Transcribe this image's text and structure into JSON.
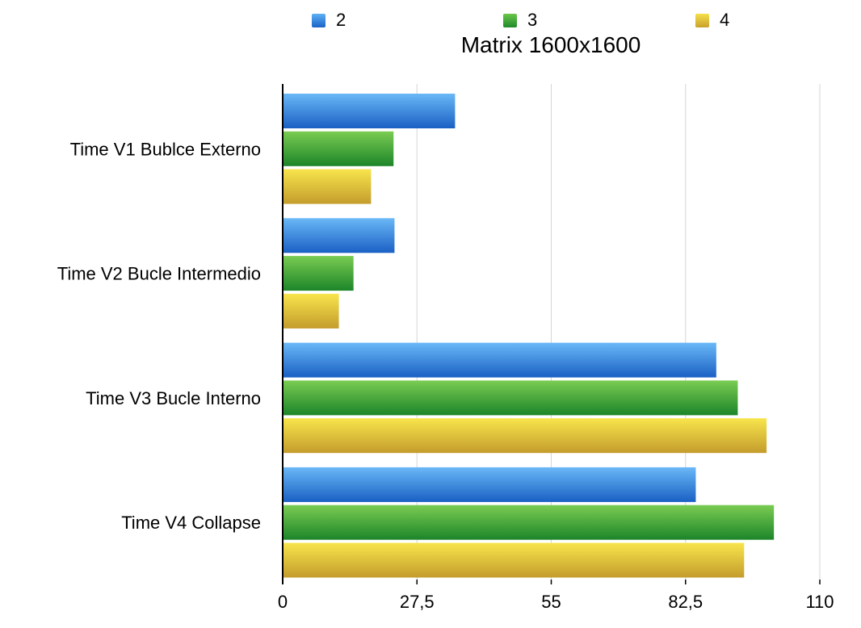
{
  "chart_data": {
    "type": "bar",
    "orientation": "horizontal",
    "title": "Matrix 1600x1600",
    "categories": [
      "Time V1 Bublce Externo",
      "Time V2 Bucle Intermedio",
      "Time V3 Bucle Interno",
      "Time V4 Collapse"
    ],
    "series": [
      {
        "name": "2",
        "values": [
          35.3,
          22.9,
          88.8,
          84.6
        ]
      },
      {
        "name": "3",
        "values": [
          22.7,
          14.5,
          93.2,
          100.6
        ]
      },
      {
        "name": "4",
        "values": [
          18.1,
          11.5,
          99.1,
          94.5
        ]
      }
    ],
    "xlim": [
      0,
      110
    ],
    "xticks": [
      "0",
      "27,5",
      "55",
      "82,5",
      "110"
    ],
    "xtick_values": [
      0,
      27.5,
      55,
      82.5,
      110
    ],
    "grid": "vertical",
    "legend_position": "top",
    "colors": {
      "2": {
        "light": "#5fb0f5",
        "dark": "#1a63c6"
      },
      "3": {
        "light": "#6cc74a",
        "dark": "#1f8a2b"
      },
      "4": {
        "light": "#f5e04a",
        "dark": "#c8a02c"
      }
    }
  }
}
